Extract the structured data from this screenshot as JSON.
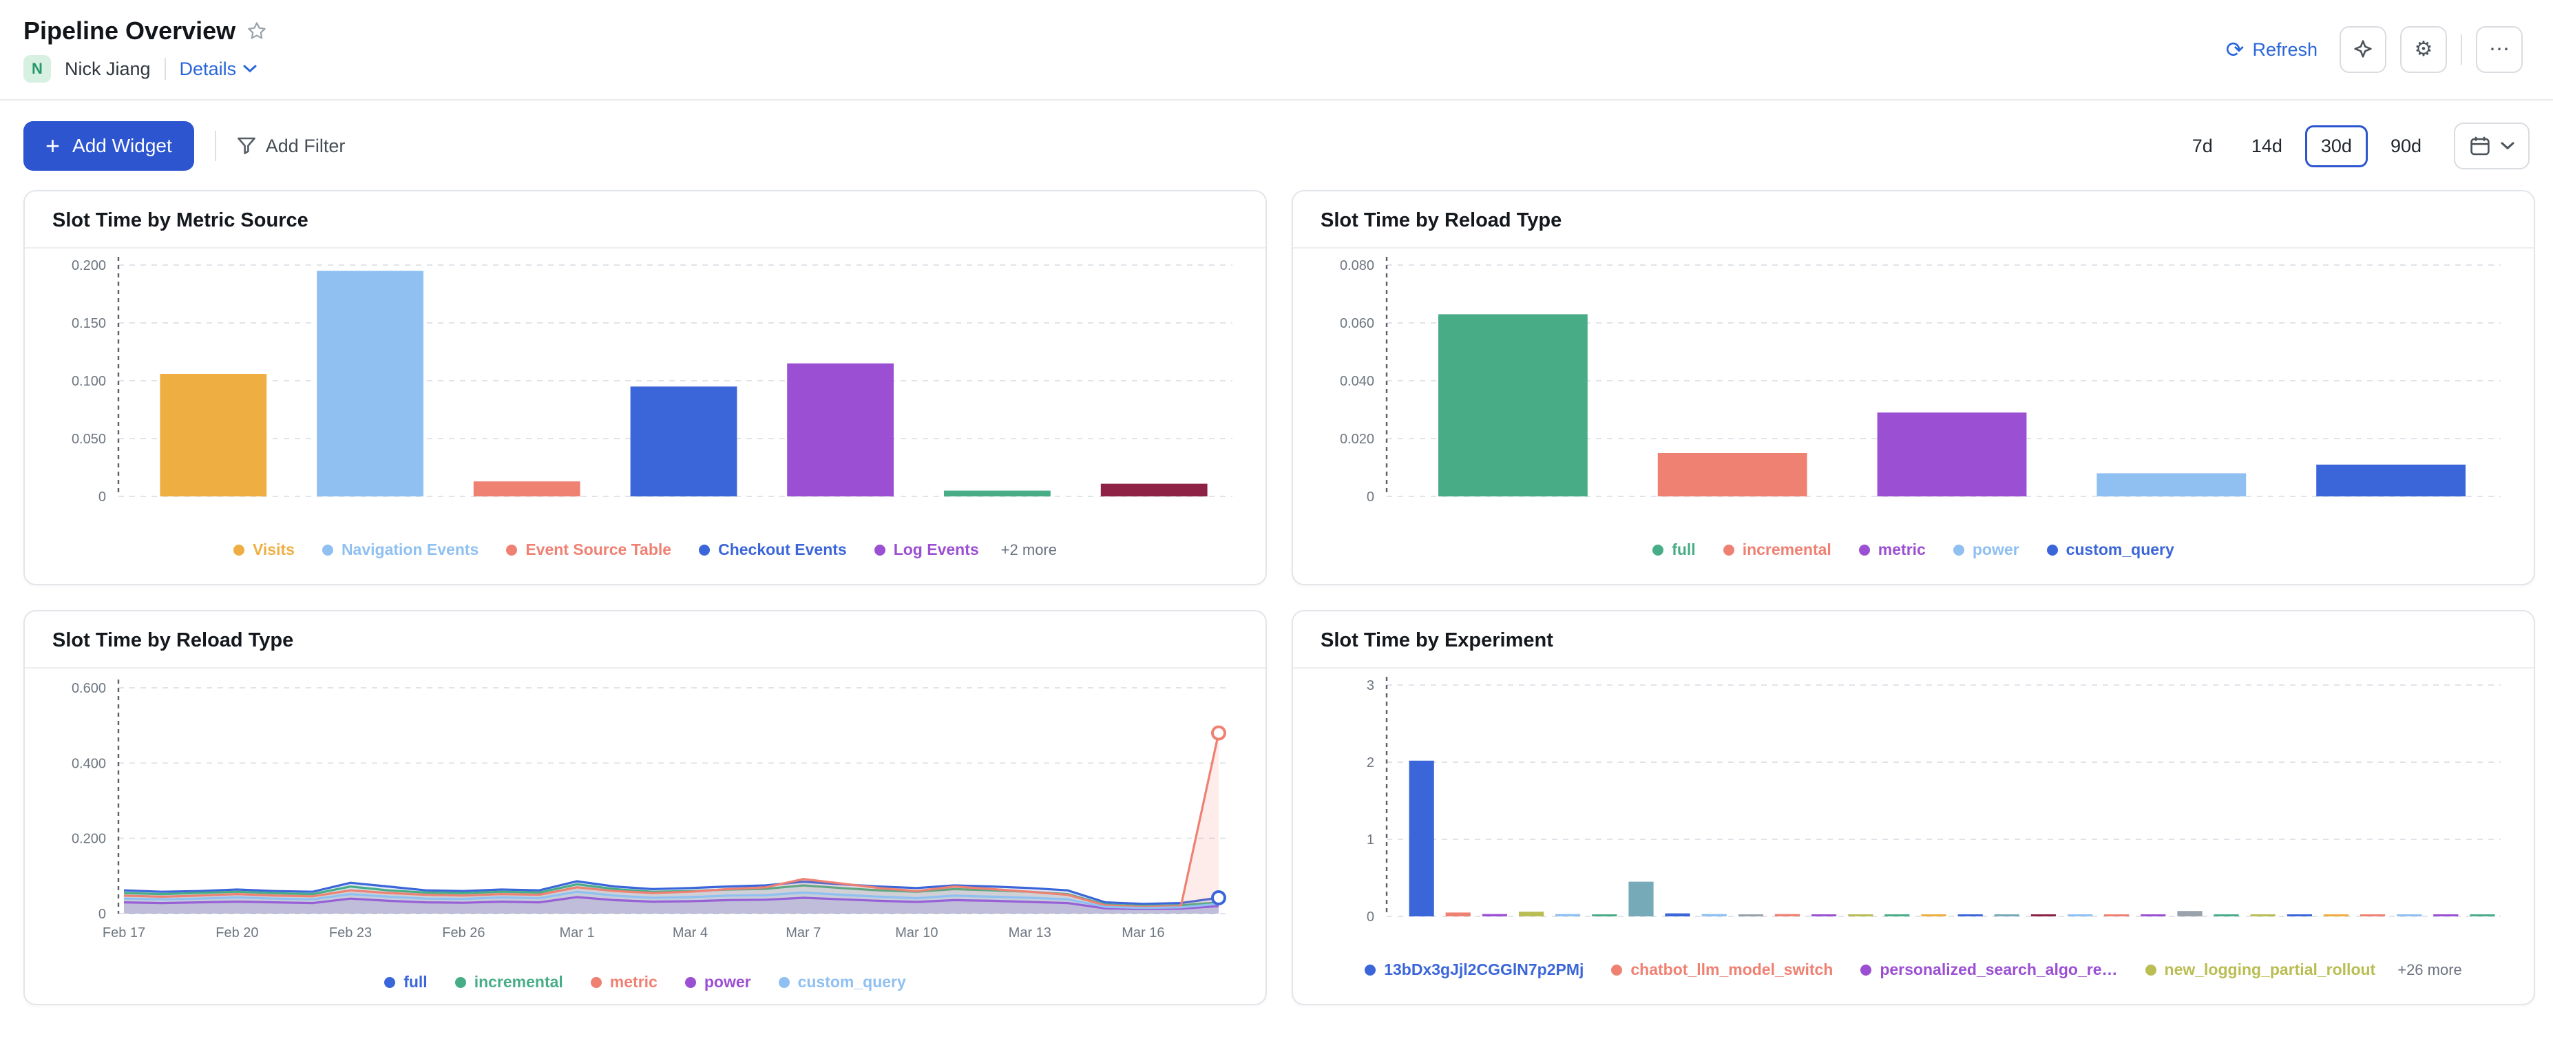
{
  "header": {
    "title": "Pipeline Overview",
    "owner_initial": "N",
    "owner_name": "Nick Jiang",
    "details_label": "Details",
    "refresh_label": "Refresh"
  },
  "icons": {
    "refresh_glyph": "⟳",
    "gear_glyph": "⚙",
    "more_glyph": "⋯",
    "plus_glyph": "+"
  },
  "colors": {
    "accent_blue": "#2d55d0",
    "link_blue": "#2a66d9",
    "avatar_green_bg": "#d7f0e2",
    "avatar_green_text": "#27966a"
  },
  "toolbar": {
    "add_widget": "Add Widget",
    "add_filter": "Add Filter",
    "ranges": [
      {
        "label": "7d",
        "selected": false
      },
      {
        "label": "14d",
        "selected": false
      },
      {
        "label": "30d",
        "selected": true
      },
      {
        "label": "90d",
        "selected": false
      }
    ]
  },
  "charts": [
    {
      "title": "Slot Time by Metric Source",
      "chart_data": {
        "type": "bar",
        "ylim": [
          0,
          0.2
        ],
        "yticks": [
          0,
          0.05,
          0.1,
          0.15,
          0.2
        ],
        "ytick_labels": [
          "0",
          "0.050",
          "0.100",
          "0.150",
          "0.200"
        ],
        "grid": "dashed-horizontal",
        "legend_position": "bottom",
        "bars": [
          {
            "label": "Visits",
            "value": 0.106,
            "color": "#efae41"
          },
          {
            "label": "Navigation Events",
            "value": 0.195,
            "color": "#8fc0f1"
          },
          {
            "label": "Event Source Table",
            "value": 0.013,
            "color": "#ef8173"
          },
          {
            "label": "Checkout Events",
            "value": 0.095,
            "color": "#3b66d9"
          },
          {
            "label": "Log Events",
            "value": 0.115,
            "color": "#9b4fd3"
          },
          {
            "label": "",
            "value": 0.005,
            "color": "#48ad87"
          },
          {
            "label": "",
            "value": 0.011,
            "color": "#8e2146"
          }
        ],
        "legend": [
          {
            "label": "Visits",
            "color": "#efae41"
          },
          {
            "label": "Navigation Events",
            "color": "#8fc0f1"
          },
          {
            "label": "Event Source Table",
            "color": "#ef8173"
          },
          {
            "label": "Checkout Events",
            "color": "#3b66d9"
          },
          {
            "label": "Log Events",
            "color": "#9b4fd3"
          }
        ],
        "legend_more": "+2 more"
      }
    },
    {
      "title": "Slot Time by Reload Type",
      "chart_data": {
        "type": "bar",
        "ylim": [
          0,
          0.08
        ],
        "yticks": [
          0,
          0.02,
          0.04,
          0.06,
          0.08
        ],
        "ytick_labels": [
          "0",
          "0.020",
          "0.040",
          "0.060",
          "0.080"
        ],
        "grid": "dashed-horizontal",
        "legend_position": "bottom",
        "bars": [
          {
            "label": "full",
            "value": 0.063,
            "color": "#48ad87"
          },
          {
            "label": "incremental",
            "value": 0.015,
            "color": "#ef8173"
          },
          {
            "label": "metric",
            "value": 0.029,
            "color": "#9b4fd3"
          },
          {
            "label": "power",
            "value": 0.008,
            "color": "#8fc0f1"
          },
          {
            "label": "custom_query",
            "value": 0.011,
            "color": "#3b66d9"
          }
        ],
        "legend": [
          {
            "label": "full",
            "color": "#48ad87"
          },
          {
            "label": "incremental",
            "color": "#ef8173"
          },
          {
            "label": "metric",
            "color": "#9b4fd3"
          },
          {
            "label": "power",
            "color": "#8fc0f1"
          },
          {
            "label": "custom_query",
            "color": "#3b66d9"
          }
        ]
      }
    },
    {
      "title": "Slot Time by Reload Type",
      "chart_data": {
        "type": "line",
        "ylim": [
          0,
          0.6
        ],
        "yticks": [
          0,
          0.2,
          0.4,
          0.6
        ],
        "ytick_labels": [
          "0",
          "0.200",
          "0.400",
          "0.600"
        ],
        "grid": "dashed-horizontal",
        "legend_position": "bottom",
        "n_points": 30,
        "x_labels": [
          "Feb 17",
          "Feb 20",
          "Feb 23",
          "Feb 26",
          "Mar 1",
          "Mar 4",
          "Mar 7",
          "Mar 10",
          "Mar 13",
          "Mar 16"
        ],
        "x_label_positions": [
          0,
          3,
          6,
          9,
          12,
          15,
          18,
          21,
          24,
          27
        ],
        "series": [
          {
            "name": "full",
            "color": "#3b66d9",
            "end_marker": true,
            "values": [
              0.062,
              0.058,
              0.06,
              0.064,
              0.06,
              0.058,
              0.082,
              0.072,
              0.062,
              0.06,
              0.064,
              0.062,
              0.086,
              0.072,
              0.065,
              0.068,
              0.072,
              0.075,
              0.085,
              0.078,
              0.072,
              0.068,
              0.075,
              0.072,
              0.068,
              0.062,
              0.03,
              0.026,
              0.028,
              0.042
            ]
          },
          {
            "name": "incremental",
            "color": "#48ad87",
            "end_marker": false,
            "values": [
              0.055,
              0.052,
              0.055,
              0.058,
              0.054,
              0.052,
              0.072,
              0.062,
              0.056,
              0.054,
              0.058,
              0.056,
              0.078,
              0.065,
              0.058,
              0.06,
              0.064,
              0.066,
              0.075,
              0.068,
              0.062,
              0.058,
              0.065,
              0.062,
              0.058,
              0.052,
              0.024,
              0.02,
              0.022,
              0.03
            ]
          },
          {
            "name": "metric",
            "color": "#ef8173",
            "end_marker": true,
            "values": [
              0.048,
              0.045,
              0.048,
              0.052,
              0.048,
              0.046,
              0.062,
              0.055,
              0.05,
              0.048,
              0.052,
              0.05,
              0.07,
              0.06,
              0.055,
              0.058,
              0.065,
              0.07,
              0.092,
              0.08,
              0.068,
              0.06,
              0.072,
              0.065,
              0.058,
              0.05,
              0.022,
              0.018,
              0.02,
              0.48
            ]
          },
          {
            "name": "power",
            "color": "#9b4fd3",
            "end_marker": false,
            "values": [
              0.03,
              0.028,
              0.03,
              0.032,
              0.03,
              0.028,
              0.04,
              0.034,
              0.03,
              0.029,
              0.032,
              0.03,
              0.044,
              0.036,
              0.032,
              0.033,
              0.036,
              0.037,
              0.042,
              0.038,
              0.034,
              0.031,
              0.036,
              0.034,
              0.031,
              0.028,
              0.014,
              0.012,
              0.013,
              0.02
            ]
          },
          {
            "name": "custom_query",
            "color": "#8fc0f1",
            "end_marker": false,
            "values": [
              0.04,
              0.038,
              0.04,
              0.043,
              0.04,
              0.038,
              0.052,
              0.045,
              0.04,
              0.039,
              0.043,
              0.041,
              0.058,
              0.048,
              0.042,
              0.044,
              0.048,
              0.049,
              0.056,
              0.05,
              0.045,
              0.041,
              0.048,
              0.045,
              0.042,
              0.038,
              0.018,
              0.015,
              0.017,
              0.026
            ]
          }
        ],
        "legend": [
          {
            "label": "full",
            "color": "#3b66d9"
          },
          {
            "label": "incremental",
            "color": "#48ad87"
          },
          {
            "label": "metric",
            "color": "#ef8173"
          },
          {
            "label": "power",
            "color": "#9b4fd3"
          },
          {
            "label": "custom_query",
            "color": "#8fc0f1"
          }
        ]
      }
    },
    {
      "title": "Slot Time by Experiment",
      "chart_data": {
        "type": "bar",
        "ylim": [
          0,
          3
        ],
        "yticks": [
          0,
          1,
          2,
          3
        ],
        "ytick_labels": [
          "0",
          "1",
          "2",
          "3"
        ],
        "grid": "dashed-horizontal",
        "legend_position": "bottom",
        "values": [
          2.02,
          0.05,
          0.03,
          0.06,
          0.03,
          0.02,
          0.45,
          0.04,
          0.03,
          0.02,
          0.03,
          0.02,
          0.02,
          0.01,
          0.02,
          0.01,
          0.02,
          0.01,
          0.01,
          0.02,
          0.01,
          0.07,
          0.01,
          0.02,
          0.01,
          0.01,
          0.02,
          0.01,
          0.02,
          0.01
        ],
        "colors": [
          "#3b66d9",
          "#ef8173",
          "#9b4fd3",
          "#b9bd52",
          "#8fc0f1",
          "#48ad87",
          "#76aab8",
          "#3b66d9",
          "#8fc0f1",
          "#9aa2ab",
          "#ef8173",
          "#9b4fd3",
          "#b9bd52",
          "#48ad87",
          "#efae41",
          "#3b66d9",
          "#76aab8",
          "#8e2146",
          "#8fc0f1",
          "#ef8173",
          "#9b4fd3",
          "#9aa2ab",
          "#48ad87",
          "#b9bd52",
          "#3b66d9",
          "#efae41",
          "#ef8173",
          "#8fc0f1",
          "#9b4fd3",
          "#48ad87"
        ],
        "legend": [
          {
            "label": "13bDx3gJjl2CGGlN7p2PMj",
            "color": "#3b66d9"
          },
          {
            "label": "chatbot_llm_model_switch",
            "color": "#ef8173"
          },
          {
            "label": "personalized_search_algo_re…",
            "color": "#9b4fd3"
          },
          {
            "label": "new_logging_partial_rollout",
            "color": "#b9bd52"
          }
        ],
        "legend_more": "+26 more"
      }
    }
  ]
}
